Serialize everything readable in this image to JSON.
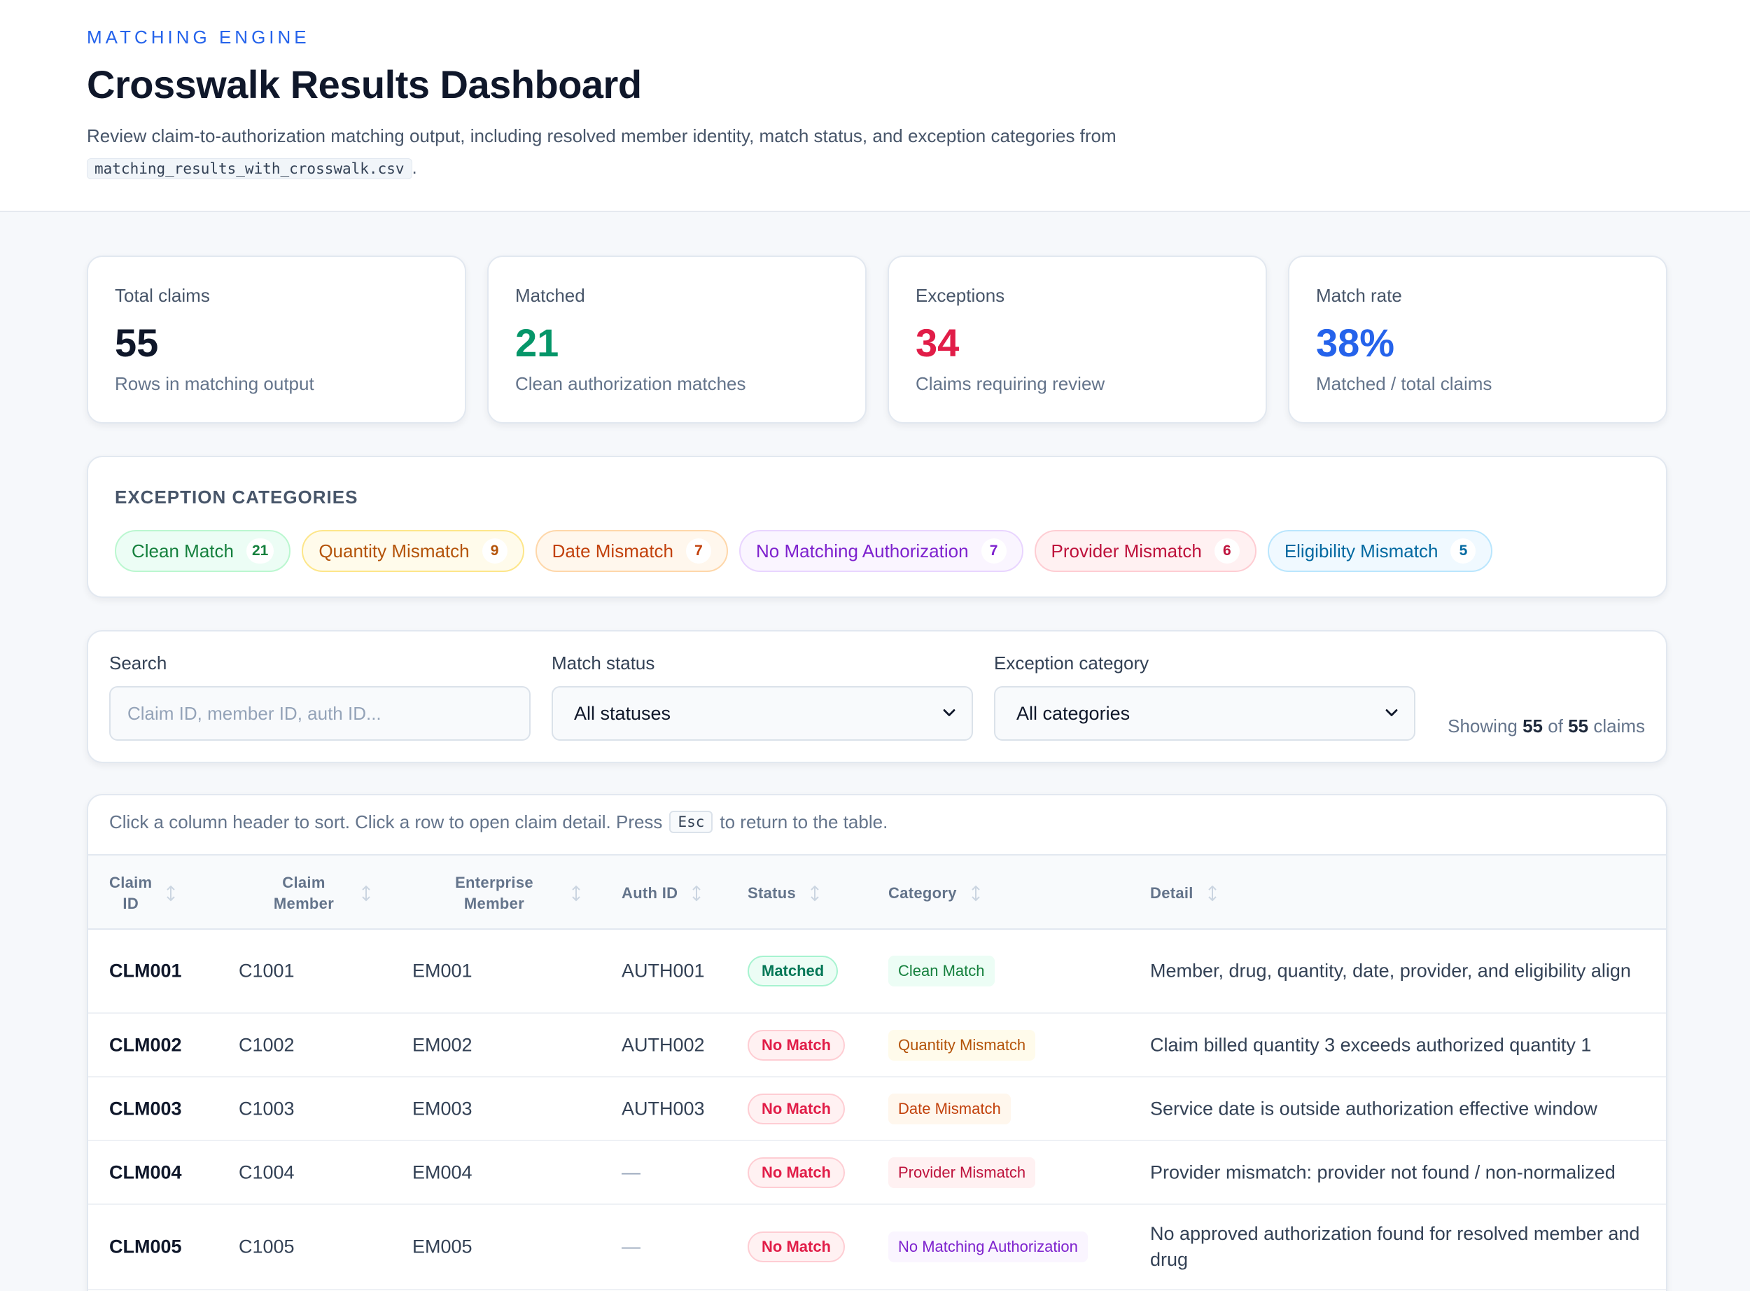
{
  "header": {
    "eyebrow": "MATCHING ENGINE",
    "title": "Crosswalk Results Dashboard",
    "subtitle_prefix": "Review claim-to-authorization matching output, including resolved member identity, match status, and exception categories from",
    "filename": "matching_results_with_crosswalk.csv",
    "subtitle_suffix": "."
  },
  "stats": [
    {
      "label": "Total claims",
      "value": "55",
      "sub": "Rows in matching output",
      "color": "#0f172a"
    },
    {
      "label": "Matched",
      "value": "21",
      "sub": "Clean authorization matches",
      "color": "#059669"
    },
    {
      "label": "Exceptions",
      "value": "34",
      "sub": "Claims requiring review",
      "color": "#e11d48"
    },
    {
      "label": "Match rate",
      "value": "38%",
      "sub": "Matched / total claims",
      "color": "#2563eb"
    }
  ],
  "categories": {
    "title": "EXCEPTION CATEGORIES",
    "chips": [
      {
        "label": "Clean Match",
        "count": "21"
      },
      {
        "label": "Quantity Mismatch",
        "count": "9"
      },
      {
        "label": "Date Mismatch",
        "count": "7"
      },
      {
        "label": "No Matching Authorization",
        "count": "7"
      },
      {
        "label": "Provider Mismatch",
        "count": "6"
      },
      {
        "label": "Eligibility Mismatch",
        "count": "5"
      }
    ]
  },
  "filters": {
    "search_label": "Search",
    "search_placeholder": "Claim ID, member ID, auth ID...",
    "status_label": "Match status",
    "status_value": "All statuses",
    "category_label": "Exception category",
    "category_value": "All categories",
    "showing_prefix": "Showing",
    "showing_count": "55",
    "showing_of": "of",
    "showing_total": "55",
    "showing_suffix": "claims"
  },
  "table": {
    "hint_prefix": "Click a column header to sort. Click a row to open claim detail. Press",
    "hint_key": "Esc",
    "hint_suffix": "to return to the table.",
    "columns": [
      {
        "line1": "Claim",
        "line2": "ID"
      },
      {
        "line1": "Claim",
        "line2": "Member"
      },
      {
        "line1": "Enterprise",
        "line2": "Member"
      },
      {
        "line1": "Auth ID",
        "line2": ""
      },
      {
        "line1": "Status",
        "line2": ""
      },
      {
        "line1": "Category",
        "line2": ""
      },
      {
        "line1": "Detail",
        "line2": ""
      }
    ],
    "rows": [
      {
        "claim_id": "CLM001",
        "claim_member": "C1001",
        "enterprise_member": "EM001",
        "auth_id": "AUTH001",
        "status": "Matched",
        "category": "Clean Match",
        "detail": "Member, drug, quantity, date, provider, and eligibility align"
      },
      {
        "claim_id": "CLM002",
        "claim_member": "C1002",
        "enterprise_member": "EM002",
        "auth_id": "AUTH002",
        "status": "No Match",
        "category": "Quantity Mismatch",
        "detail": "Claim billed quantity 3 exceeds authorized quantity 1"
      },
      {
        "claim_id": "CLM003",
        "claim_member": "C1003",
        "enterprise_member": "EM003",
        "auth_id": "AUTH003",
        "status": "No Match",
        "category": "Date Mismatch",
        "detail": "Service date is outside authorization effective window"
      },
      {
        "claim_id": "CLM004",
        "claim_member": "C1004",
        "enterprise_member": "EM004",
        "auth_id": "—",
        "status": "No Match",
        "category": "Provider Mismatch",
        "detail": "Provider mismatch: provider not found / non-normalized"
      },
      {
        "claim_id": "CLM005",
        "claim_member": "C1005",
        "enterprise_member": "EM005",
        "auth_id": "—",
        "status": "No Match",
        "category": "No Matching Authorization",
        "detail": "No approved authorization found for resolved member and drug"
      }
    ]
  },
  "colors": {
    "accent": "#2563eb",
    "matched": "#059669",
    "no_match": "#e11d48",
    "clean_match": "#15803d",
    "quantity_mismatch": "#b45309",
    "date_mismatch": "#c2410c",
    "no_matching_authorization": "#7e22ce",
    "provider_mismatch": "#be123c",
    "eligibility_mismatch": "#0369a1"
  },
  "icons": {
    "sort": "sort-arrows-icon",
    "dropdown": "chevron-down-icon"
  }
}
